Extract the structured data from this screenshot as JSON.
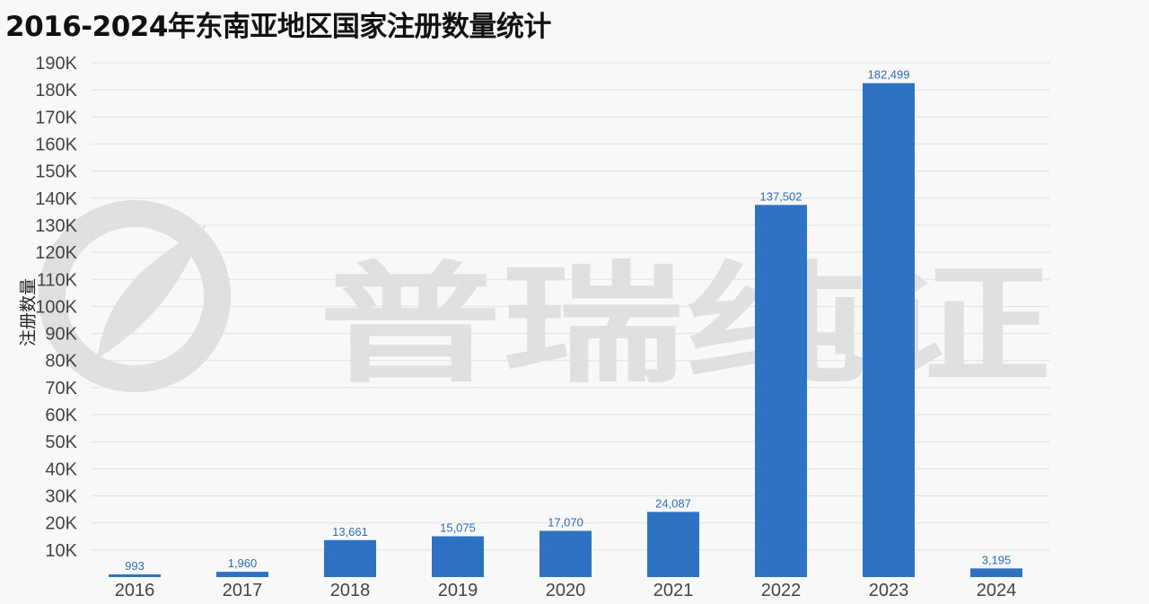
{
  "title": "2016-2024年东南亚地区国家注册数量统计",
  "watermark": "普瑞纯证",
  "chart_data": {
    "type": "bar",
    "title": "2016-2024年东南亚地区国家注册数量统计",
    "xlabel": "",
    "ylabel": "注册数量",
    "categories": [
      "2016",
      "2017",
      "2018",
      "2019",
      "2020",
      "2021",
      "2022",
      "2023",
      "2024"
    ],
    "values": [
      993,
      1960,
      13661,
      15075,
      17070,
      24087,
      137502,
      182499,
      3195
    ],
    "data_labels": [
      "993",
      "1,960",
      "13,661",
      "15,075",
      "17,070",
      "24,087",
      "137,502",
      "182,499",
      "3,195"
    ],
    "y_ticks": [
      "10K",
      "20K",
      "30K",
      "40K",
      "50K",
      "60K",
      "70K",
      "80K",
      "90K",
      "100K",
      "110K",
      "120K",
      "130K",
      "140K",
      "150K",
      "160K",
      "170K",
      "180K",
      "190K"
    ],
    "ylim": [
      0,
      190000
    ],
    "grid": true,
    "bar_color": "#2d72c3",
    "label_color": "#2b6cb8"
  }
}
